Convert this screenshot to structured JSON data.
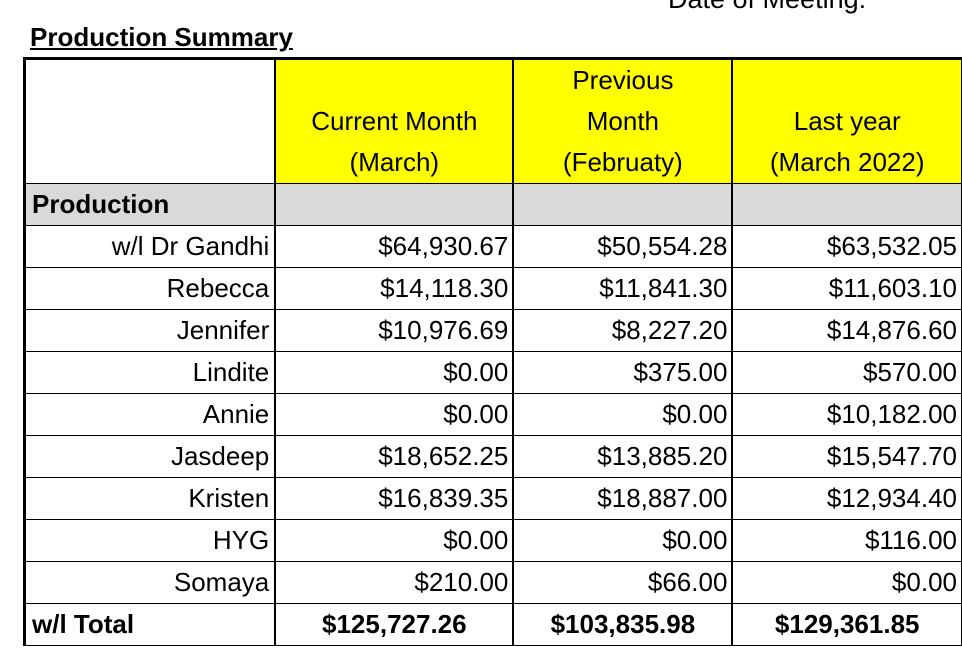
{
  "header": {
    "meeting_label": "Date of Meeting:"
  },
  "section_title": "Production Summary",
  "table": {
    "columns": [
      {
        "lines": [
          "Current Month",
          "(March)"
        ]
      },
      {
        "lines": [
          "Previous",
          "Month",
          "(Februaty)"
        ]
      },
      {
        "lines": [
          "Last year",
          "(March 2022)"
        ]
      }
    ],
    "section_label": "Production",
    "rows": [
      {
        "label": "w/l Dr Gandhi",
        "values": [
          "$64,930.67",
          "$50,554.28",
          "$63,532.05"
        ]
      },
      {
        "label": "Rebecca",
        "values": [
          "$14,118.30",
          "$11,841.30",
          "$11,603.10"
        ]
      },
      {
        "label": "Jennifer",
        "values": [
          "$10,976.69",
          "$8,227.20",
          "$14,876.60"
        ]
      },
      {
        "label": "Lindite",
        "values": [
          "$0.00",
          "$375.00",
          "$570.00"
        ]
      },
      {
        "label": "Annie",
        "values": [
          "$0.00",
          "$0.00",
          "$10,182.00"
        ]
      },
      {
        "label": "Jasdeep",
        "values": [
          "$18,652.25",
          "$13,885.20",
          "$15,547.70"
        ]
      },
      {
        "label": "Kristen",
        "values": [
          "$16,839.35",
          "$18,887.00",
          "$12,934.40"
        ]
      },
      {
        "label": "HYG",
        "values": [
          "$0.00",
          "$0.00",
          "$116.00"
        ]
      },
      {
        "label": "Somaya",
        "values": [
          "$210.00",
          "$66.00",
          "$0.00"
        ]
      }
    ],
    "total": {
      "label": "w/l  Total",
      "values": [
        "$125,727.26",
        "$103,835.98",
        "$129,361.85"
      ]
    }
  },
  "colors": {
    "header_fill": "#ffff00",
    "section_fill": "#d9d9d9"
  }
}
